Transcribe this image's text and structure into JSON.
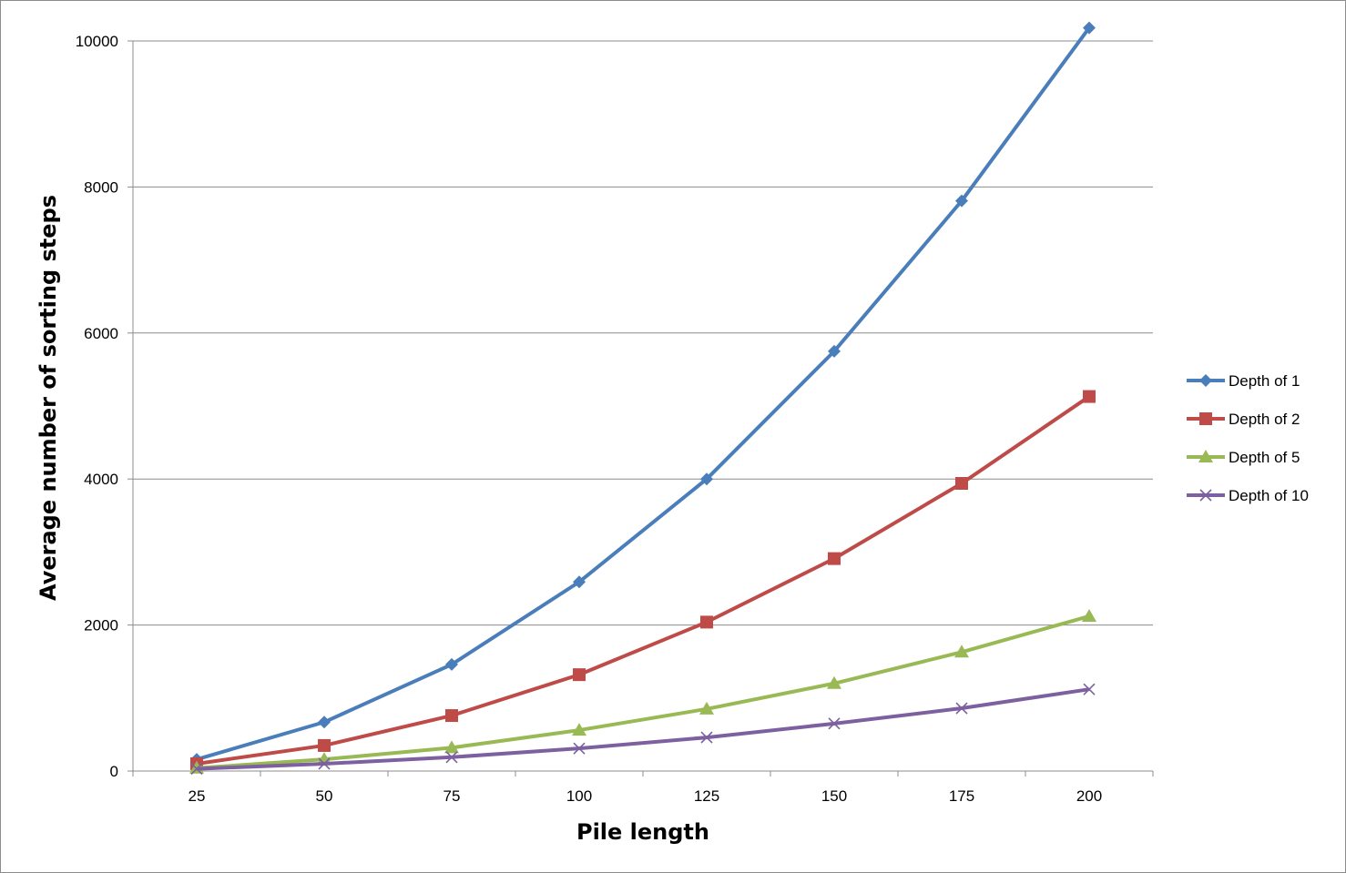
{
  "chart_data": {
    "type": "line",
    "xlabel": "Pile length",
    "ylabel": "Average number of sorting steps",
    "categories": [
      "25",
      "50",
      "75",
      "100",
      "125",
      "150",
      "175",
      "200"
    ],
    "ylim": [
      0,
      10000
    ],
    "yticks": [
      "0",
      "2000",
      "4000",
      "6000",
      "8000",
      "10000"
    ],
    "grid": "horizontal",
    "legend_position": "right",
    "series": [
      {
        "name": "Depth of 1",
        "color": "#4a7ebb",
        "marker": "diamond",
        "values": [
          160,
          670,
          1460,
          2590,
          4000,
          5750,
          7810,
          10180
        ]
      },
      {
        "name": "Depth of 2",
        "color": "#be4b48",
        "marker": "square",
        "values": [
          100,
          350,
          760,
          1320,
          2040,
          2910,
          3940,
          5130
        ]
      },
      {
        "name": "Depth of 5",
        "color": "#98b954",
        "marker": "triangle",
        "values": [
          40,
          160,
          320,
          560,
          850,
          1200,
          1630,
          2120
        ]
      },
      {
        "name": "Depth of 10",
        "color": "#7d60a0",
        "marker": "x",
        "values": [
          30,
          100,
          190,
          310,
          460,
          650,
          860,
          1120
        ]
      }
    ]
  }
}
